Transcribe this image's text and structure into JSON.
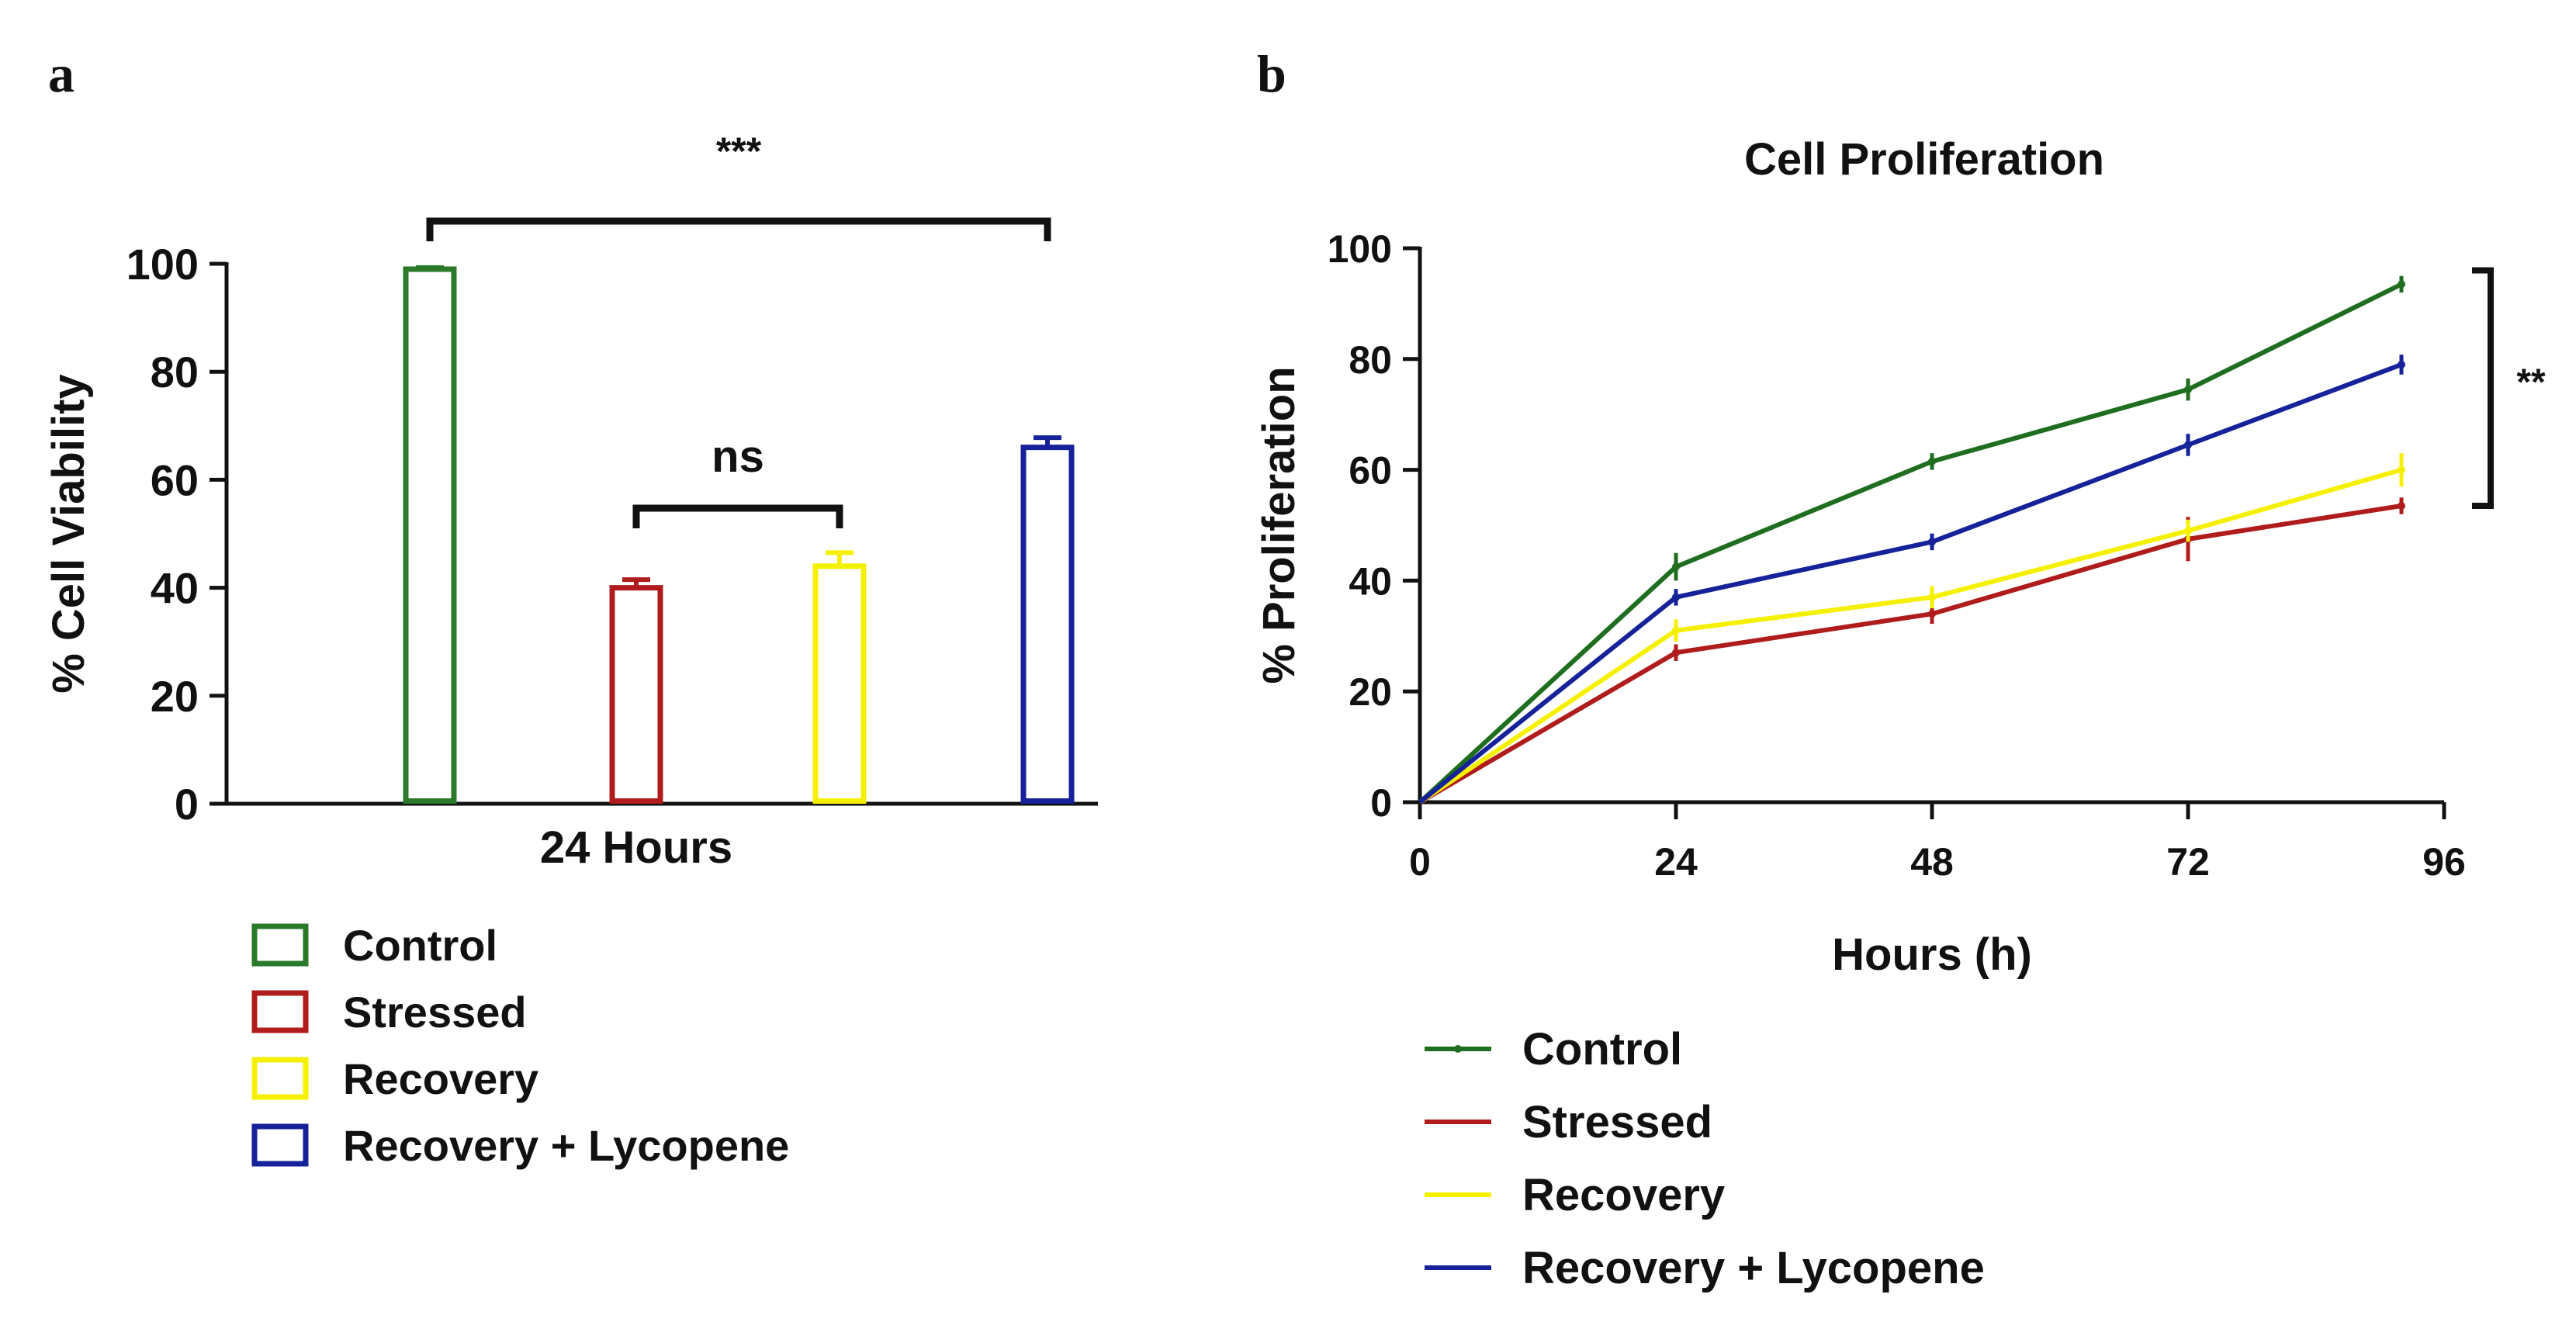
{
  "panels": {
    "a_label": "a",
    "b_label": "b"
  },
  "chart_data": [
    {
      "type": "bar",
      "title": "",
      "xlabel": "24 Hours",
      "ylabel": "% Cell Viability",
      "ylim": [
        0,
        100
      ],
      "yticks": [
        "0",
        "20",
        "40",
        "60",
        "80",
        "100"
      ],
      "categories": [
        "Control",
        "Stressed",
        "Recovery",
        "Recovery + Lycopene"
      ],
      "values": [
        99,
        40,
        44,
        66
      ],
      "errors": [
        0.3,
        1.5,
        2.5,
        1.8
      ],
      "colors": [
        "#2a7a2a",
        "#b01c1c",
        "#f5f000",
        "#16229a"
      ],
      "annotations": [
        {
          "text": "***",
          "from": "Control",
          "to": "Recovery + Lycopene"
        },
        {
          "text": "ns",
          "from": "Stressed",
          "to": "Recovery"
        }
      ],
      "legend": {
        "position": "bottom-left",
        "entries": [
          "Control",
          "Stressed",
          "Recovery",
          "Recovery + Lycopene"
        ]
      }
    },
    {
      "type": "line",
      "title": "Cell Proliferation",
      "xlabel": "Hours (h)",
      "ylabel": "% Proliferation",
      "xlim": [
        0,
        96
      ],
      "ylim": [
        0,
        100
      ],
      "xticks": [
        "0",
        "24",
        "48",
        "72",
        "96"
      ],
      "yticks": [
        "0",
        "20",
        "40",
        "60",
        "80",
        "100"
      ],
      "x": [
        0,
        24,
        48,
        72,
        92
      ],
      "series": [
        {
          "name": "Control",
          "color": "#1f6e1f",
          "values": [
            0,
            42.5,
            61.5,
            74.5,
            93.5
          ],
          "errors": [
            0,
            2.5,
            1.5,
            2.0,
            1.5
          ]
        },
        {
          "name": "Stressed",
          "color": "#b01c1c",
          "values": [
            0,
            27,
            34,
            47.5,
            53.5
          ],
          "errors": [
            0,
            1.5,
            1.8,
            4.0,
            1.5
          ]
        },
        {
          "name": "Recovery",
          "color": "#f5f000",
          "values": [
            0,
            31,
            37,
            49,
            60
          ],
          "errors": [
            0,
            2.0,
            2.0,
            2.0,
            3.0
          ]
        },
        {
          "name": "Recovery + Lycopene",
          "color": "#16229a",
          "values": [
            0,
            37,
            47,
            64.5,
            79
          ],
          "errors": [
            0,
            1.5,
            1.5,
            2.0,
            1.8
          ]
        }
      ],
      "annotations": [
        {
          "text": "**",
          "span": [
            53.5,
            96
          ]
        }
      ],
      "legend": {
        "position": "bottom-left",
        "entries": [
          "Control",
          "Stressed",
          "Recovery",
          "Recovery + Lycopene"
        ]
      }
    }
  ]
}
